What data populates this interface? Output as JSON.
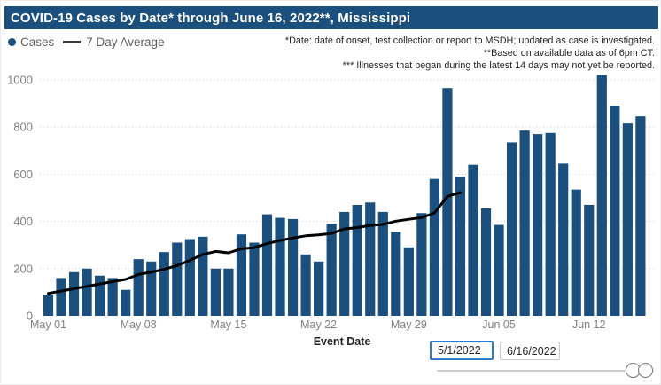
{
  "title": "COVID-19 Cases by Date* through June 16, 2022**, Mississippi",
  "legend": {
    "cases_label": "Cases",
    "avg_label": "7 Day Average"
  },
  "footnotes": [
    "*Date: date of onset, test collection or report to MSDH; updated as case is investigated.",
    "**Based on available data as of 6pm CT.",
    "*** Illnesses that began during the latest 14 days may not yet be reported."
  ],
  "colors": {
    "title_bar": "#1B4F7E",
    "bar": "#1B4F7E",
    "avg_line": "#000000",
    "axis_text": "#808080",
    "gridline": "#CCCCCC",
    "focus_border": "#2F7AC9"
  },
  "controls": {
    "start_date_value": "5/1/2022",
    "end_date_value": "6/16/2022"
  },
  "chart_data": {
    "type": "bar",
    "title": "COVID-19 Cases by Date through June 16, 2022, Mississippi",
    "xlabel": "Event Date",
    "ylabel": "",
    "ylim": [
      0,
      1000
    ],
    "yticks": [
      0,
      200,
      400,
      600,
      800,
      1000
    ],
    "grid": "dotted horizontal",
    "legend_position": "top-left",
    "categories": [
      "May 01",
      "May 02",
      "May 03",
      "May 04",
      "May 05",
      "May 06",
      "May 07",
      "May 08",
      "May 09",
      "May 10",
      "May 11",
      "May 12",
      "May 13",
      "May 14",
      "May 15",
      "May 16",
      "May 17",
      "May 18",
      "May 19",
      "May 20",
      "May 21",
      "May 22",
      "May 23",
      "May 24",
      "May 25",
      "May 26",
      "May 27",
      "May 28",
      "May 29",
      "May 30",
      "May 31",
      "Jun 01",
      "Jun 02",
      "Jun 03",
      "Jun 04",
      "Jun 05",
      "Jun 06",
      "Jun 07",
      "Jun 08",
      "Jun 09",
      "Jun 10",
      "Jun 11",
      "Jun 12",
      "Jun 13",
      "Jun 14",
      "Jun 15",
      "Jun 16"
    ],
    "xtick_indices": [
      0,
      7,
      14,
      21,
      28,
      35,
      42
    ],
    "xtick_labels": [
      "May 01",
      "May 08",
      "May 15",
      "May 22",
      "May 29",
      "Jun 05",
      "Jun 12"
    ],
    "series": [
      {
        "name": "Cases",
        "type": "bar",
        "values": [
          90,
          160,
          185,
          200,
          170,
          160,
          110,
          240,
          230,
          270,
          310,
          325,
          335,
          200,
          200,
          345,
          310,
          430,
          415,
          410,
          260,
          230,
          390,
          440,
          470,
          480,
          440,
          355,
          290,
          435,
          580,
          965,
          590,
          640,
          455,
          385,
          735,
          785,
          770,
          775,
          645,
          535,
          470,
          1020,
          890,
          815,
          845
        ]
      },
      {
        "name": "7 Day Average",
        "type": "line",
        "note": "line drawn through Jun 02 only; latest days incomplete",
        "values": [
          95,
          105,
          115,
          125,
          135,
          145,
          154,
          175,
          185,
          197,
          213,
          235,
          260,
          273,
          267,
          284,
          289,
          306,
          319,
          330,
          339,
          343,
          349,
          368,
          374,
          383,
          387,
          401,
          409,
          416,
          436,
          506,
          522
        ]
      }
    ]
  }
}
